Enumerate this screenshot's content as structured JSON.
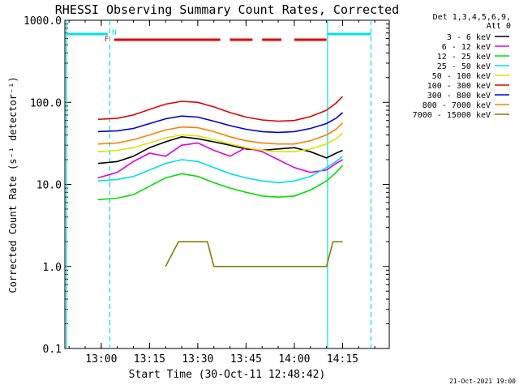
{
  "chart_data": {
    "type": "line",
    "title": "RHESSI Observing Summary Count Rates, Corrected",
    "xlabel": "Start Time (30-Oct-11 12:48:42)",
    "ylabel": "Corrected Count Rate (s⁻¹ detector⁻¹)",
    "y_scale": "log",
    "ylim": [
      0.1,
      1000
    ],
    "xlim": [
      "12:48:42",
      "14:29:30"
    ],
    "x_ticks": [
      "13:00",
      "13:15",
      "13:30",
      "13:45",
      "14:00",
      "14:15"
    ],
    "y_ticks": [
      "0.1",
      "1.0",
      "10.0",
      "100.0",
      "1000.0"
    ],
    "legend_header": [
      "Det 1,3,4,5,6,9,",
      "Att 0"
    ],
    "legend_position": "outside-right",
    "series": [
      {
        "name": "3 - 6 keV",
        "color": "#000000",
        "x": [
          "12:59:00",
          "13:05",
          "13:10",
          "13:15",
          "13:20",
          "13:25",
          "13:30",
          "13:35",
          "13:40",
          "13:45",
          "13:50",
          "13:55",
          "14:00",
          "14:05",
          "14:10",
          "14:13",
          "14:15"
        ],
        "y": [
          18,
          19,
          22,
          28,
          33,
          38,
          36,
          33,
          30,
          27,
          26,
          27,
          28,
          25,
          21,
          24,
          26
        ]
      },
      {
        "name": "6 - 12 keV",
        "color": "#e000e0",
        "x": [
          "12:59:00",
          "13:05",
          "13:10",
          "13:15",
          "13:20",
          "13:25",
          "13:30",
          "13:35",
          "13:40",
          "13:45",
          "13:50",
          "13:55",
          "14:00",
          "14:05",
          "14:10",
          "14:13",
          "14:15"
        ],
        "y": [
          12,
          14,
          19,
          24,
          22,
          30,
          32,
          26,
          22,
          28,
          25,
          20,
          16,
          14,
          15,
          18,
          20
        ]
      },
      {
        "name": "12 - 25 keV",
        "color": "#00e000",
        "x": [
          "12:59:00",
          "13:05",
          "13:10",
          "13:15",
          "13:20",
          "13:25",
          "13:30",
          "13:35",
          "13:40",
          "13:45",
          "13:50",
          "13:55",
          "14:00",
          "14:05",
          "14:10",
          "14:13",
          "14:15"
        ],
        "y": [
          6.5,
          6.8,
          7.5,
          9.5,
          12,
          13.5,
          12.5,
          10.5,
          9,
          8,
          7.2,
          7,
          7.2,
          8.5,
          11,
          14,
          17
        ]
      },
      {
        "name": "25 - 50 keV",
        "color": "#00e0e0",
        "x": [
          "12:59:00",
          "13:05",
          "13:10",
          "13:15",
          "13:20",
          "13:25",
          "13:30",
          "13:35",
          "13:40",
          "13:45",
          "13:50",
          "13:55",
          "14:00",
          "14:05",
          "14:10",
          "14:13",
          "14:15"
        ],
        "y": [
          11,
          11.5,
          12.5,
          15,
          18,
          20,
          19,
          16,
          13.5,
          12,
          11,
          10.5,
          11,
          12.5,
          16,
          19,
          22
        ]
      },
      {
        "name": "50 - 100 keV",
        "color": "#e0e000",
        "x": [
          "12:59:00",
          "13:05",
          "13:10",
          "13:15",
          "13:20",
          "13:25",
          "13:30",
          "13:35",
          "13:40",
          "13:45",
          "13:50",
          "13:55",
          "14:00",
          "14:05",
          "14:10",
          "14:13",
          "14:15"
        ],
        "y": [
          25,
          26,
          28,
          32,
          37,
          40,
          39,
          35,
          31,
          28,
          26,
          25,
          25,
          27,
          31,
          36,
          42
        ]
      },
      {
        "name": "100 - 300 keV",
        "color": "#e00000",
        "x": [
          "12:59:00",
          "13:05",
          "13:10",
          "13:15",
          "13:20",
          "13:25",
          "13:30",
          "13:35",
          "13:40",
          "13:45",
          "13:50",
          "13:55",
          "14:00",
          "14:05",
          "14:10",
          "14:13",
          "14:15"
        ],
        "y": [
          62,
          64,
          70,
          82,
          95,
          103,
          100,
          88,
          75,
          66,
          61,
          59,
          60,
          67,
          80,
          98,
          118
        ]
      },
      {
        "name": "300 - 800 keV",
        "color": "#0000e0",
        "x": [
          "12:59:00",
          "13:05",
          "13:10",
          "13:15",
          "13:20",
          "13:25",
          "13:30",
          "13:35",
          "13:40",
          "13:45",
          "13:50",
          "13:55",
          "14:00",
          "14:05",
          "14:10",
          "14:13",
          "14:15"
        ],
        "y": [
          44,
          45,
          48,
          55,
          63,
          68,
          66,
          59,
          52,
          47,
          44,
          43,
          44,
          48,
          55,
          64,
          75
        ]
      },
      {
        "name": "800 - 7000 keV",
        "color": "#ff8000",
        "x": [
          "12:59:00",
          "13:05",
          "13:10",
          "13:15",
          "13:20",
          "13:25",
          "13:30",
          "13:35",
          "13:40",
          "13:45",
          "13:50",
          "13:55",
          "14:00",
          "14:05",
          "14:10",
          "14:13",
          "14:15"
        ],
        "y": [
          31,
          32,
          35,
          40,
          46,
          50,
          49,
          44,
          38,
          34,
          32,
          31,
          31,
          34,
          40,
          47,
          56
        ]
      },
      {
        "name": "7000 - 15000 keV",
        "color": "#808000",
        "x": [
          "13:20",
          "13:24",
          "13:28",
          "13:30",
          "13:33",
          "13:35",
          "14:10",
          "14:12",
          "14:15"
        ],
        "y": [
          1,
          2,
          2,
          2,
          2,
          1,
          1,
          2,
          2
        ]
      }
    ],
    "annotations": {
      "flags": [
        {
          "label": "N",
          "color": "#00e0e0"
        },
        {
          "label": "F",
          "color": "#e00000"
        }
      ],
      "night_bars_color": "#00e0e0",
      "flare_bars_color": "#e00000",
      "vertical_lines": [
        {
          "style": "solid",
          "color": "#00e0e0"
        },
        {
          "style": "dashed",
          "color": "#00e0e0"
        },
        {
          "style": "solid",
          "color": "#00e0e0"
        },
        {
          "style": "dashed",
          "color": "#00e0e0"
        }
      ]
    },
    "footer": "21-Oct-2021 19:00"
  }
}
